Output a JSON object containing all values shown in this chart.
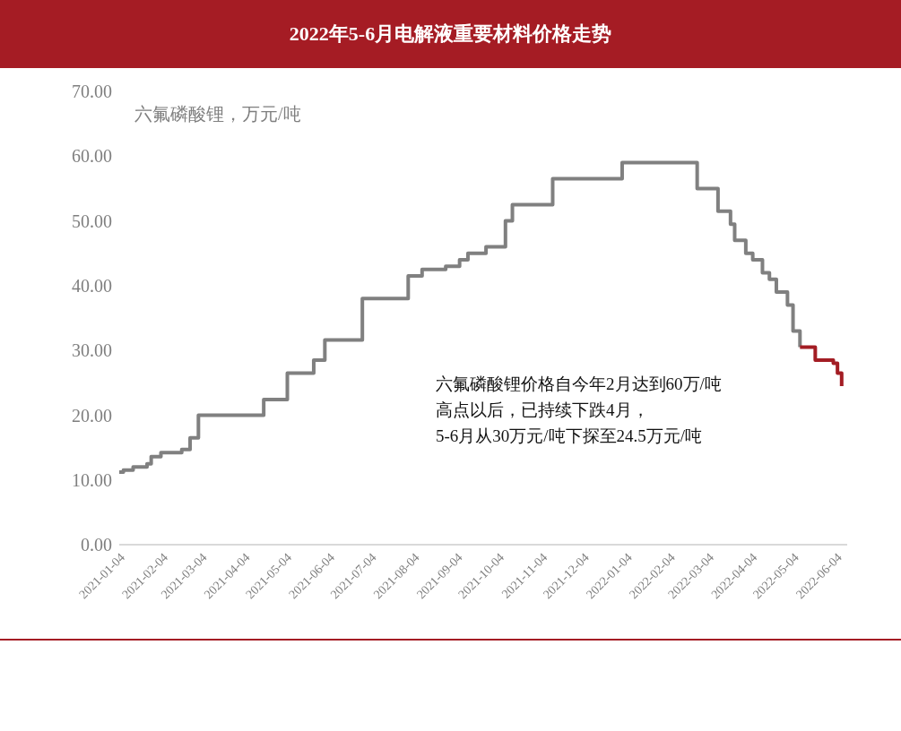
{
  "chart_data": {
    "type": "step",
    "title": "2022年5-6月电解液重要材料价格走势",
    "ylabel": "六氟磷酸锂，万元/吨",
    "annotations": [
      "六氟磷酸锂价格自今年2月达到60万/吨",
      "高点以后，已持续下跌4月，",
      "5-6月从30万元/吨下探至24.5万元/吨"
    ],
    "xlim": [
      "2021-01-04",
      "2022-06-12"
    ],
    "xticks": [
      "2021-01-04",
      "2021-02-04",
      "2021-03-04",
      "2021-04-04",
      "2021-05-04",
      "2021-06-04",
      "2021-07-04",
      "2021-08-04",
      "2021-09-04",
      "2021-10-04",
      "2021-11-04",
      "2021-12-04",
      "2022-01-04",
      "2022-02-04",
      "2022-03-04",
      "2022-04-04",
      "2022-05-04",
      "2022-06-04"
    ],
    "ylim": [
      0,
      70
    ],
    "yticks": [
      {
        "value": 0,
        "label": "0.00"
      },
      {
        "value": 10,
        "label": "10.00"
      },
      {
        "value": 20,
        "label": "20.00"
      },
      {
        "value": 30,
        "label": "30.00"
      },
      {
        "value": 40,
        "label": "40.00"
      },
      {
        "value": 50,
        "label": "50.00"
      },
      {
        "value": 60,
        "label": "60.00"
      },
      {
        "value": 70,
        "label": "70.00"
      }
    ],
    "series": [
      {
        "color": "#808080",
        "x": [
          "2021-01-04",
          "2021-01-07",
          "2021-01-14",
          "2021-01-24",
          "2021-01-27",
          "2021-02-03",
          "2021-02-18",
          "2021-02-24",
          "2021-03-02",
          "2021-04-18",
          "2021-05-05",
          "2021-05-24",
          "2021-06-01",
          "2021-06-28",
          "2021-07-31",
          "2021-08-10",
          "2021-08-27",
          "2021-09-06",
          "2021-09-12",
          "2021-09-25",
          "2021-10-09",
          "2021-10-14",
          "2021-11-12",
          "2022-01-01",
          "2022-02-24",
          "2022-03-11",
          "2022-03-20",
          "2022-03-23",
          "2022-03-31",
          "2022-04-05",
          "2022-04-12",
          "2022-04-17",
          "2022-04-22",
          "2022-04-30",
          "2022-05-04",
          "2022-05-09"
        ],
        "values": [
          11.2,
          11.5,
          12.0,
          12.5,
          13.6,
          14.2,
          14.7,
          16.5,
          20.0,
          22.4,
          26.5,
          28.5,
          31.6,
          38.0,
          41.5,
          42.5,
          43.0,
          44.0,
          45.0,
          46.0,
          50.0,
          52.5,
          56.5,
          59.0,
          55.0,
          51.5,
          49.5,
          47.0,
          45.0,
          44.0,
          42.0,
          41.0,
          39.0,
          37.0,
          33.0,
          30.5
        ]
      },
      {
        "color": "#a31d24",
        "x": [
          "2022-05-09",
          "2022-05-20",
          "2022-06-02",
          "2022-06-05",
          "2022-06-08"
        ],
        "values": [
          30.5,
          28.5,
          28.0,
          26.5,
          24.5
        ]
      }
    ]
  }
}
